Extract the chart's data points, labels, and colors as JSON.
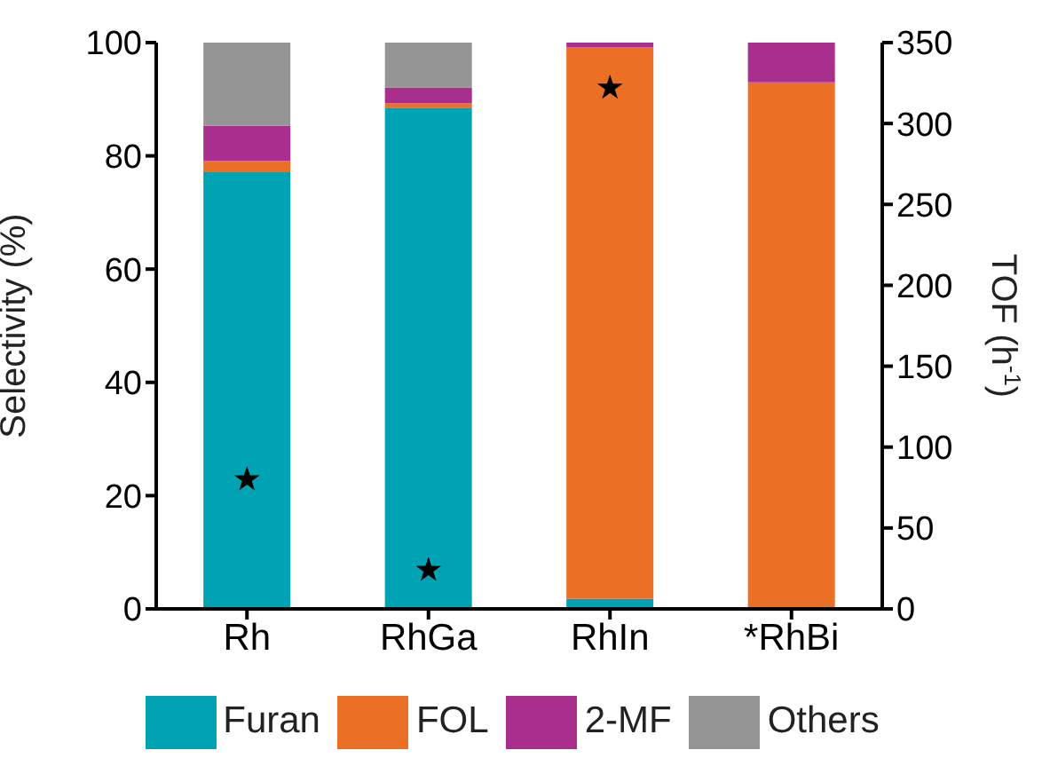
{
  "chart_data": {
    "type": "bar",
    "stacked": true,
    "categories": [
      "Rh",
      "RhGa",
      "RhIn",
      "*RhBi"
    ],
    "ylabel": "Selectivity (%)",
    "y2label": "TOF (h$^{-1}$)",
    "ylim": [
      0,
      100
    ],
    "yticks": [
      0,
      20,
      40,
      60,
      80,
      100
    ],
    "y2lim": [
      0,
      350
    ],
    "y2ticks": [
      0,
      50,
      100,
      150,
      200,
      250,
      300,
      350
    ],
    "series": [
      {
        "name": "Furan",
        "color": "#00a3b4",
        "values": [
          77.1,
          88.5,
          1.8,
          0.3
        ]
      },
      {
        "name": "FOL",
        "color": "#ec6f26",
        "values": [
          2.0,
          0.8,
          97.4,
          92.7
        ]
      },
      {
        "name": "2-MF",
        "color": "#a92e8e",
        "values": [
          6.2,
          2.8,
          0.8,
          7.0
        ]
      },
      {
        "name": "Others",
        "color": "#959595",
        "values": [
          14.7,
          7.9,
          0,
          0
        ]
      },
      {
        "type": "scatter",
        "axis": "y2",
        "marker": "star",
        "color": "#000000",
        "x": [
          "Rh",
          "RhGa",
          "RhIn"
        ],
        "values": [
          80,
          24,
          322
        ]
      }
    ],
    "legend": "bottom",
    "grid": false
  }
}
